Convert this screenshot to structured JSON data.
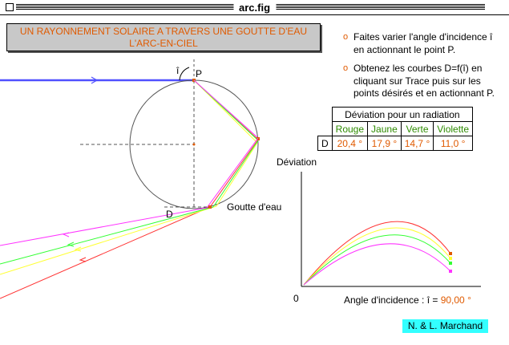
{
  "window": {
    "title": "arc.fig"
  },
  "banner": {
    "line1": "UN RAYONNEMENT SOLAIRE A TRAVERS UNE GOUTTE D'EAU",
    "line2": "L'ARC-EN-CIEL"
  },
  "instructions": [
    {
      "text": "Faites varier l'angle d'incidence î en actionnant le point P."
    },
    {
      "text": "Obtenez les courbes  D=f(î) en cliquant sur Trace puis sur les points désirés et en actionnant P."
    }
  ],
  "table": {
    "title": "Déviation pour un radiation",
    "row_label": "D",
    "columns": [
      {
        "name": "Rouge",
        "value": "20,4 °"
      },
      {
        "name": "Jaune",
        "value": "17,9 °"
      },
      {
        "name": "Verte",
        "value": "14,7 °"
      },
      {
        "name": "Violette",
        "value": "11,0 °"
      }
    ]
  },
  "diagram": {
    "point_p": "P",
    "angle_i": "î",
    "point_d": "D",
    "drop_label": "Goutte d'eau"
  },
  "graph": {
    "ylabel": "Déviation",
    "origin": "0",
    "xlabel": "Angle d'incidence : î = ",
    "xvalue": "90,00 °"
  },
  "credit": "N. & L. Marchand",
  "colors": {
    "red": "#ff3333",
    "yellow": "#ffff33",
    "green": "#33ff33",
    "violet": "#ff33ff",
    "incident": "#5050ff",
    "orange": "#e05a00"
  }
}
